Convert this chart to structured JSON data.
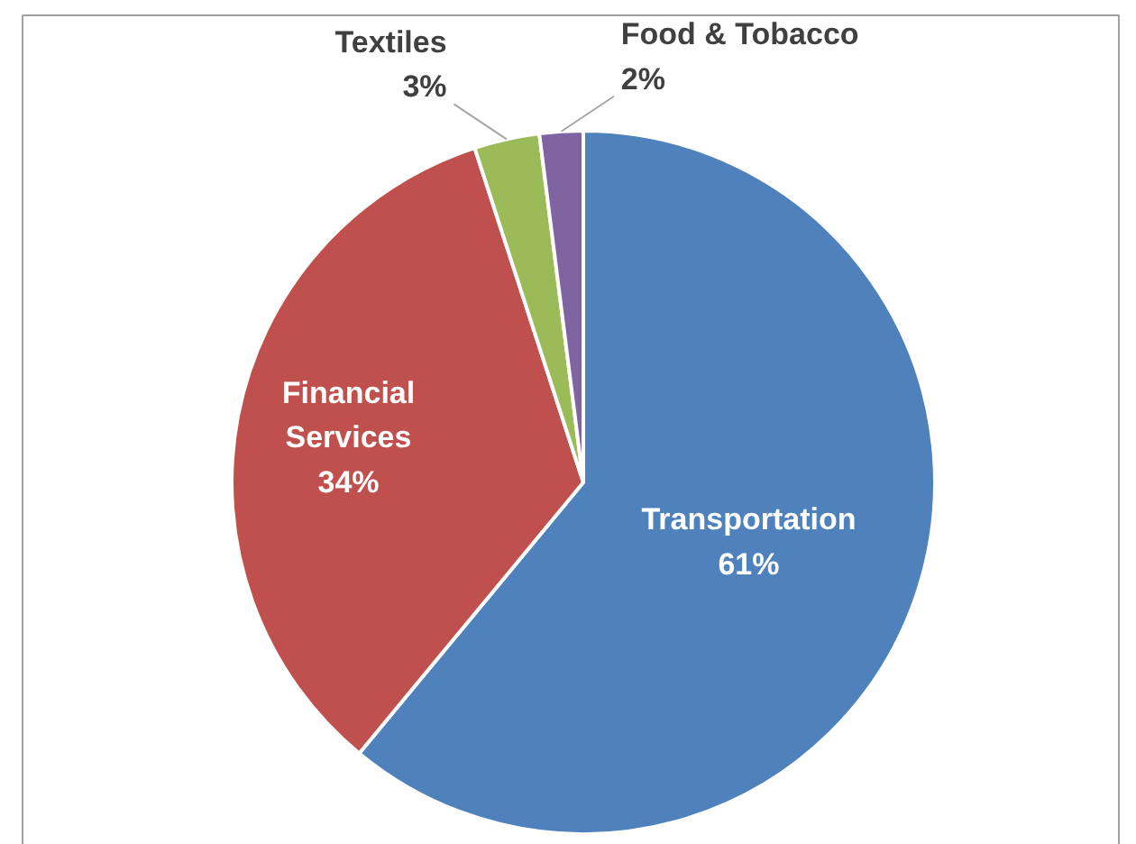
{
  "chart_data": {
    "type": "pie",
    "categories": [
      "Transportation",
      "Financial\nServices",
      "Textiles",
      "Food & Tobacco"
    ],
    "values": [
      61,
      34,
      3,
      2
    ],
    "value_labels": [
      "61%",
      "34%",
      "3%",
      "2%"
    ],
    "colors": [
      "#4f81bd",
      "#c0504d",
      "#9bbb59",
      "#8064a2"
    ]
  }
}
